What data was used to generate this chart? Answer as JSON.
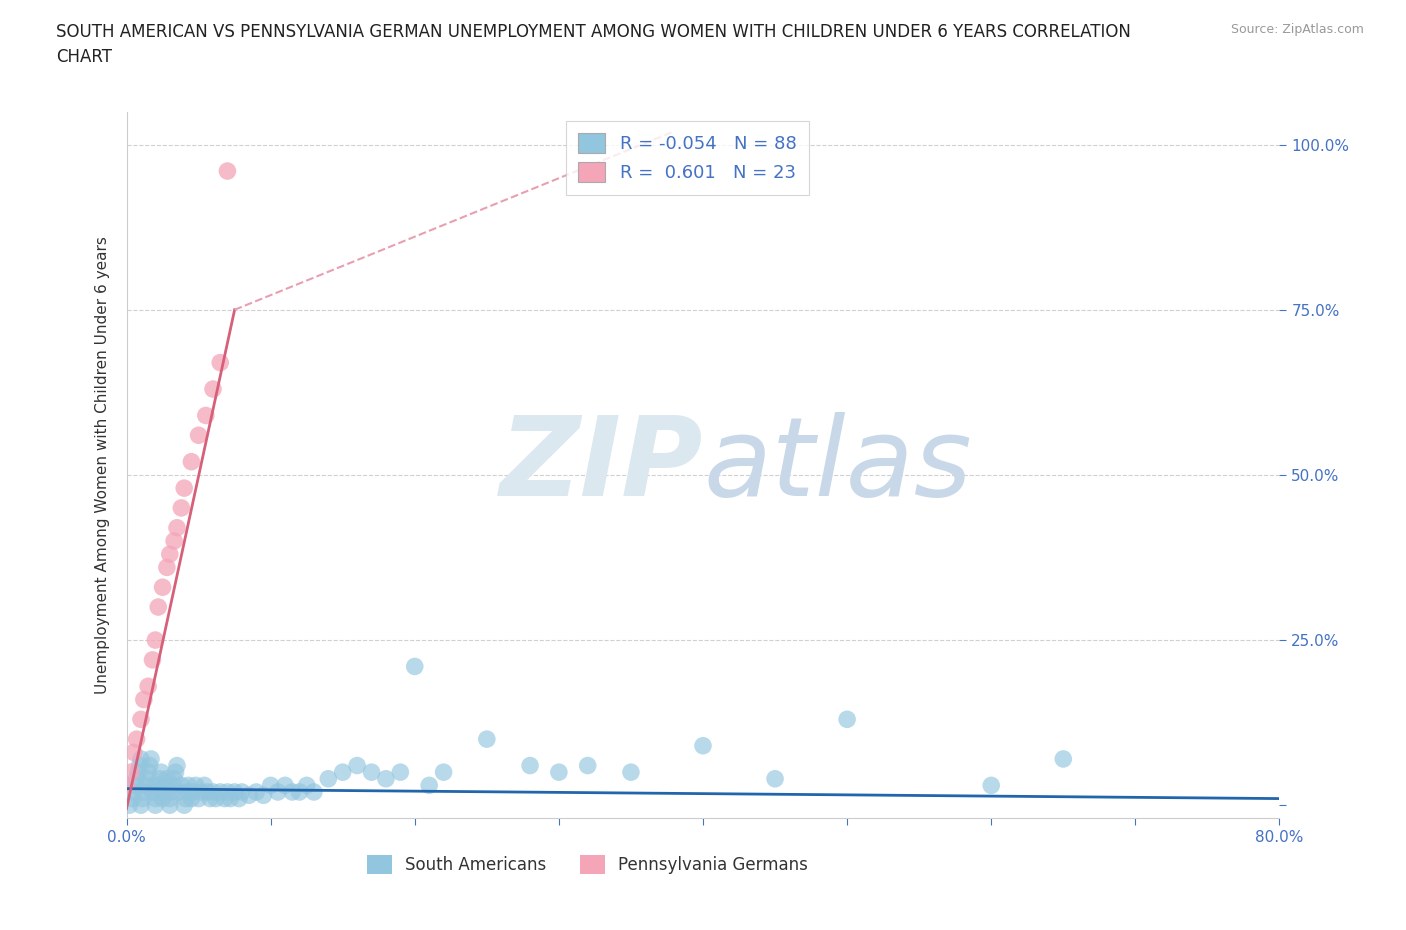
{
  "title_line1": "SOUTH AMERICAN VS PENNSYLVANIA GERMAN UNEMPLOYMENT AMONG WOMEN WITH CHILDREN UNDER 6 YEARS CORRELATION",
  "title_line2": "CHART",
  "source": "Source: ZipAtlas.com",
  "ylabel": "Unemployment Among Women with Children Under 6 years",
  "xlim": [
    0.0,
    0.8
  ],
  "ylim": [
    -0.02,
    1.05
  ],
  "yticks": [
    0.0,
    0.25,
    0.5,
    0.75,
    1.0
  ],
  "ytick_labels": [
    "",
    "25.0%",
    "50.0%",
    "75.0%",
    "100.0%"
  ],
  "xticks": [
    0.0,
    0.1,
    0.2,
    0.3,
    0.4,
    0.5,
    0.6,
    0.7,
    0.8
  ],
  "xtick_labels": [
    "0.0%",
    "",
    "",
    "",
    "",
    "",
    "",
    "",
    "80.0%"
  ],
  "blue_color": "#92c5de",
  "pink_color": "#f4a5b8",
  "blue_scatter": {
    "x": [
      0.0,
      0.002,
      0.004,
      0.005,
      0.006,
      0.007,
      0.008,
      0.009,
      0.01,
      0.01,
      0.011,
      0.012,
      0.013,
      0.014,
      0.015,
      0.016,
      0.017,
      0.018,
      0.019,
      0.02,
      0.02,
      0.021,
      0.022,
      0.023,
      0.024,
      0.025,
      0.026,
      0.027,
      0.028,
      0.03,
      0.03,
      0.031,
      0.032,
      0.033,
      0.034,
      0.035,
      0.036,
      0.038,
      0.04,
      0.041,
      0.042,
      0.043,
      0.045,
      0.046,
      0.048,
      0.05,
      0.052,
      0.054,
      0.056,
      0.058,
      0.06,
      0.062,
      0.065,
      0.068,
      0.07,
      0.072,
      0.075,
      0.078,
      0.08,
      0.085,
      0.09,
      0.095,
      0.1,
      0.105,
      0.11,
      0.115,
      0.12,
      0.125,
      0.13,
      0.14,
      0.15,
      0.16,
      0.17,
      0.18,
      0.19,
      0.2,
      0.21,
      0.22,
      0.25,
      0.28,
      0.3,
      0.32,
      0.35,
      0.4,
      0.45,
      0.5,
      0.6,
      0.65
    ],
    "y": [
      0.03,
      0.0,
      0.01,
      0.02,
      0.03,
      0.04,
      0.05,
      0.06,
      0.0,
      0.07,
      0.01,
      0.02,
      0.03,
      0.04,
      0.05,
      0.06,
      0.07,
      0.02,
      0.03,
      0.0,
      0.01,
      0.02,
      0.03,
      0.04,
      0.05,
      0.01,
      0.02,
      0.03,
      0.04,
      0.0,
      0.01,
      0.02,
      0.03,
      0.04,
      0.05,
      0.06,
      0.02,
      0.03,
      0.0,
      0.01,
      0.02,
      0.03,
      0.01,
      0.02,
      0.03,
      0.01,
      0.02,
      0.03,
      0.02,
      0.01,
      0.02,
      0.01,
      0.02,
      0.01,
      0.02,
      0.01,
      0.02,
      0.01,
      0.02,
      0.015,
      0.02,
      0.015,
      0.03,
      0.02,
      0.03,
      0.02,
      0.02,
      0.03,
      0.02,
      0.04,
      0.05,
      0.06,
      0.05,
      0.04,
      0.05,
      0.21,
      0.03,
      0.05,
      0.1,
      0.06,
      0.05,
      0.06,
      0.05,
      0.09,
      0.04,
      0.13,
      0.03,
      0.07
    ]
  },
  "pink_scatter": {
    "x": [
      0.0,
      0.003,
      0.005,
      0.007,
      0.01,
      0.012,
      0.015,
      0.018,
      0.02,
      0.022,
      0.025,
      0.028,
      0.03,
      0.033,
      0.035,
      0.038,
      0.04,
      0.045,
      0.05,
      0.055,
      0.06,
      0.065,
      0.07
    ],
    "y": [
      0.03,
      0.05,
      0.08,
      0.1,
      0.13,
      0.16,
      0.18,
      0.22,
      0.25,
      0.3,
      0.33,
      0.36,
      0.38,
      0.4,
      0.42,
      0.45,
      0.48,
      0.52,
      0.56,
      0.59,
      0.63,
      0.67,
      0.96
    ]
  },
  "blue_line": {
    "x": [
      0.0,
      0.8
    ],
    "y": [
      0.025,
      0.01
    ]
  },
  "pink_line_solid": {
    "x": [
      0.0,
      0.075
    ],
    "y": [
      -0.005,
      0.75
    ]
  },
  "pink_line_dashed": {
    "x": [
      0.075,
      0.38
    ],
    "y": [
      0.75,
      1.02
    ]
  },
  "legend_R_blue": "-0.054",
  "legend_N_blue": "88",
  "legend_R_pink": "0.601",
  "legend_N_pink": "23",
  "watermark_zip": "ZIP",
  "watermark_atlas": "atlas",
  "watermark_color": "#d0e4f0",
  "label_south_americans": "South Americans",
  "label_penn_german": "Pennsylvania Germans",
  "grid_color": "#d0d0d0",
  "tick_color": "#4472c4",
  "title_color": "#222222",
  "bg_color": "#ffffff"
}
